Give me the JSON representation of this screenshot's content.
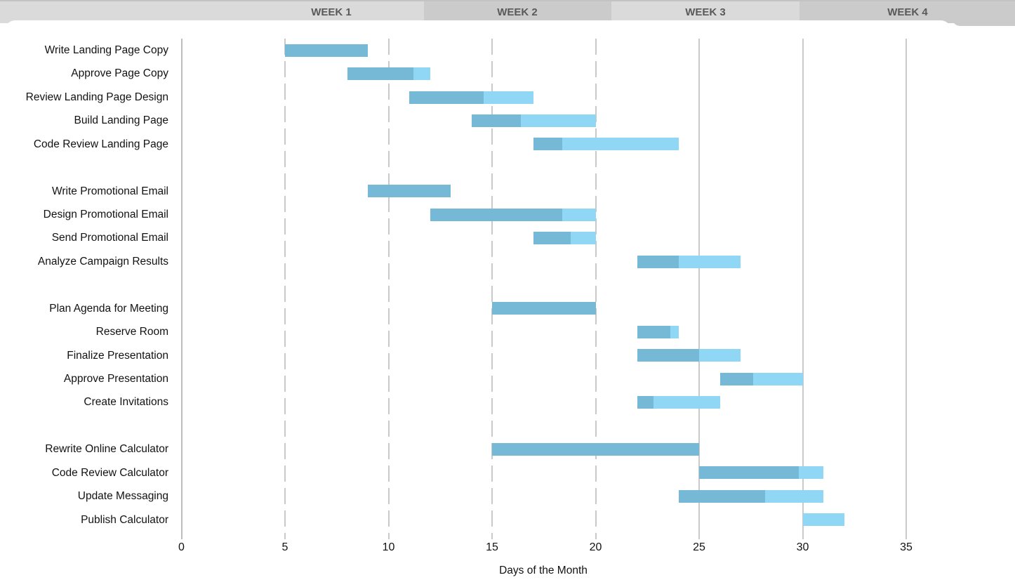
{
  "chart_data": {
    "type": "gantt",
    "xlabel": "Days of the Month",
    "x_ticks": [
      "0",
      "5",
      "10",
      "15",
      "20",
      "25",
      "30",
      "35"
    ],
    "xlim": [
      0,
      40
    ],
    "week_headers": [
      "WEEK 1",
      "WEEK 2",
      "WEEK 3",
      "WEEK 4"
    ],
    "dashed_gridlines": [
      5,
      10,
      15,
      20
    ],
    "solid_gridlines": [
      0,
      25,
      30,
      35
    ],
    "groups": [
      {
        "tasks": [
          {
            "label": "Write Landing Page Copy",
            "start": 5,
            "end": 9,
            "progress": 1.0
          },
          {
            "label": "Approve Page Copy",
            "start": 8,
            "end": 12,
            "progress": 0.8
          },
          {
            "label": "Review Landing Page Design",
            "start": 11,
            "end": 17,
            "progress": 0.6
          },
          {
            "label": "Build Landing Page",
            "start": 14,
            "end": 20,
            "progress": 0.4
          },
          {
            "label": "Code Review Landing Page",
            "start": 17,
            "end": 24,
            "progress": 0.2
          }
        ]
      },
      {
        "tasks": [
          {
            "label": "Write Promotional Email",
            "start": 9,
            "end": 13,
            "progress": 1.0
          },
          {
            "label": "Design Promotional Email",
            "start": 12,
            "end": 20,
            "progress": 0.8
          },
          {
            "label": "Send Promotional Email",
            "start": 17,
            "end": 20,
            "progress": 0.6
          },
          {
            "label": "Analyze Campaign Results",
            "start": 22,
            "end": 27,
            "progress": 0.4
          }
        ]
      },
      {
        "tasks": [
          {
            "label": "Plan Agenda for Meeting",
            "start": 15,
            "end": 20,
            "progress": 1.0
          },
          {
            "label": "Reserve Room",
            "start": 22,
            "end": 24,
            "progress": 0.8
          },
          {
            "label": "Finalize Presentation",
            "start": 22,
            "end": 27,
            "progress": 0.6
          },
          {
            "label": "Approve Presentation",
            "start": 26,
            "end": 30,
            "progress": 0.4
          },
          {
            "label": "Create Invitations",
            "start": 22,
            "end": 26,
            "progress": 0.2
          }
        ]
      },
      {
        "tasks": [
          {
            "label": "Rewrite Online Calculator",
            "start": 15,
            "end": 25,
            "progress": 1.0
          },
          {
            "label": "Code Review Calculator",
            "start": 25,
            "end": 31,
            "progress": 0.8
          },
          {
            "label": "Update Messaging",
            "start": 24,
            "end": 31,
            "progress": 0.6
          },
          {
            "label": "Publish Calculator",
            "start": 30,
            "end": 32,
            "progress": 0.0
          }
        ]
      }
    ],
    "colors": {
      "bar_complete": "#76B9D7",
      "bar_remaining": "#8FD7F5",
      "header_light": "#DADADA",
      "header_dark": "#CBCBCB",
      "header_text": "#595959",
      "gridline": "#C9C9C9",
      "text": "#121212"
    }
  }
}
